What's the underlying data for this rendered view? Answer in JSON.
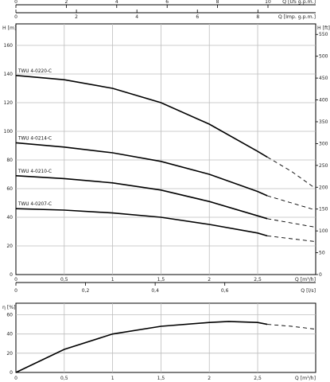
{
  "chart_data": [
    {
      "type": "line",
      "name": "pump-curves",
      "xlabel": "Q [m³/h]",
      "ylabel": "H [m]",
      "ylabel_right": "H [ft]",
      "xlim": [
        0,
        3.1
      ],
      "ylim": [
        0,
        175
      ],
      "grid": true,
      "x_ticks": [
        0,
        0.5,
        1,
        1.5,
        2,
        2.5
      ],
      "x_tick_labels": [
        "0",
        "0,5",
        "1",
        "1,5",
        "2",
        "2,5"
      ],
      "y_ticks": [
        0,
        20,
        40,
        60,
        80,
        100,
        120,
        140,
        160
      ],
      "y_right_ticks": [
        0,
        50,
        100,
        150,
        200,
        250,
        300,
        350,
        400,
        450,
        500,
        550
      ],
      "secondary_x_axes": [
        {
          "label": "Q [l/s]",
          "ticks": [
            0,
            0.2,
            0.4,
            0.6
          ],
          "tick_labels": [
            "0",
            "0,2",
            "0,4",
            "0,6"
          ]
        },
        {
          "label": "Q [US g.p.m.]",
          "ticks": [
            0,
            2,
            4,
            6,
            8,
            10
          ],
          "tick_labels": [
            "0",
            "2",
            "4",
            "6",
            "8",
            "10"
          ]
        },
        {
          "label": "Q [Imp. g.p.m.]",
          "ticks": [
            0,
            2,
            4,
            6,
            8
          ],
          "tick_labels": [
            "0",
            "2",
            "4",
            "6",
            "8"
          ]
        }
      ],
      "series": [
        {
          "name": "TWU 4-0220-C",
          "x": [
            0,
            0.5,
            1,
            1.5,
            2,
            2.5,
            2.6
          ],
          "y": [
            139,
            136,
            130,
            120,
            105,
            86,
            82
          ],
          "extension": {
            "x": [
              2.6,
              2.85,
              3.1
            ],
            "y": [
              82,
              72,
              60
            ]
          }
        },
        {
          "name": "TWU 4-0214-C",
          "x": [
            0,
            0.5,
            1,
            1.5,
            2,
            2.5,
            2.6
          ],
          "y": [
            92,
            89,
            85,
            79,
            70,
            58,
            55
          ],
          "extension": {
            "x": [
              2.6,
              2.85,
              3.1
            ],
            "y": [
              55,
              50,
              45
            ]
          }
        },
        {
          "name": "TWU 4-0210-C",
          "x": [
            0,
            0.5,
            1,
            1.5,
            2,
            2.5,
            2.6
          ],
          "y": [
            69,
            67,
            64,
            59,
            51,
            41,
            39
          ],
          "extension": {
            "x": [
              2.6,
              2.85,
              3.1
            ],
            "y": [
              39,
              36,
              33
            ]
          }
        },
        {
          "name": "TWU 4-0207-C",
          "x": [
            0,
            0.5,
            1,
            1.5,
            2,
            2.5,
            2.6
          ],
          "y": [
            46,
            45,
            43,
            40,
            35,
            29,
            27
          ],
          "extension": {
            "x": [
              2.6,
              2.85,
              3.1
            ],
            "y": [
              27,
              25,
              23
            ]
          }
        }
      ]
    },
    {
      "type": "line",
      "name": "efficiency",
      "xlabel": "Q [m³/h]",
      "ylabel": "η [%]",
      "xlim": [
        0,
        3.1
      ],
      "ylim": [
        0,
        72
      ],
      "grid": true,
      "x_ticks": [
        0,
        0.5,
        1,
        1.5,
        2,
        2.5
      ],
      "x_tick_labels": [
        "0",
        "0,5",
        "1",
        "1,5",
        "2",
        "2,5"
      ],
      "y_ticks": [
        0,
        20,
        40,
        60
      ],
      "series": [
        {
          "name": "",
          "x": [
            0,
            0.5,
            1,
            1.5,
            2,
            2.2,
            2.5,
            2.6
          ],
          "y": [
            0,
            24,
            40,
            48,
            52,
            53,
            52,
            50
          ],
          "extension": {
            "x": [
              2.6,
              2.85,
              3.1
            ],
            "y": [
              50,
              48,
              45
            ]
          }
        }
      ]
    }
  ]
}
